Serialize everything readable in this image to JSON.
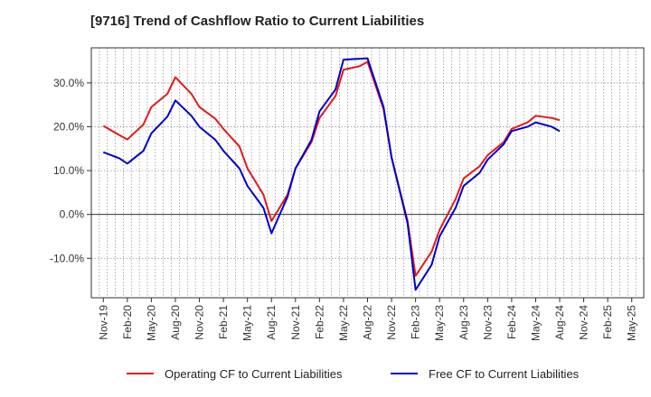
{
  "chart_data": {
    "type": "line",
    "title": "[9716]  Trend of Cashflow Ratio to Current Liabilities",
    "categories": [
      "Nov-19",
      "Feb-20",
      "May-20",
      "Aug-20",
      "Nov-20",
      "Feb-21",
      "May-21",
      "Aug-21",
      "Nov-21",
      "Feb-22",
      "May-22",
      "Aug-22",
      "Nov-22",
      "Feb-23",
      "May-23",
      "Aug-23",
      "Nov-23",
      "Feb-24",
      "May-24",
      "Aug-24",
      "Nov-24",
      "Feb-25",
      "May-25"
    ],
    "x": [
      "Nov-19",
      "Jan-20",
      "Feb-20",
      "Apr-20",
      "May-20",
      "Jul-20",
      "Aug-20",
      "Oct-20",
      "Nov-20",
      "Jan-21",
      "Feb-21",
      "Apr-21",
      "May-21",
      "Jul-21",
      "Aug-21",
      "Oct-21",
      "Nov-21",
      "Jan-22",
      "Feb-22",
      "Apr-22",
      "May-22",
      "Jul-22",
      "Aug-22",
      "Oct-22",
      "Nov-22",
      "Jan-23",
      "Feb-23",
      "Apr-23",
      "May-23",
      "Jul-23",
      "Aug-23",
      "Oct-23",
      "Nov-23",
      "Jan-24",
      "Feb-24",
      "Apr-24",
      "May-24",
      "Jul-24",
      "Aug-24"
    ],
    "series": [
      {
        "name": "Operating CF to Current Liabilities",
        "color": "#e31a1c",
        "values": [
          20.2,
          18.1,
          17.1,
          20.5,
          24.5,
          27.5,
          31.3,
          27.5,
          24.5,
          21.8,
          19.5,
          15.5,
          10.5,
          4.5,
          -1.5,
          4.5,
          10.5,
          16.5,
          22.0,
          27.0,
          33.0,
          33.8,
          34.8,
          24.0,
          13.0,
          -1.5,
          -14.0,
          -8.5,
          -3.5,
          3.5,
          8.2,
          11.0,
          13.5,
          16.5,
          19.5,
          21.0,
          22.5,
          22.0,
          21.5
        ]
      },
      {
        "name": "Free CF to Current Liabilities",
        "color": "#0000cd",
        "values": [
          14.2,
          12.8,
          11.6,
          14.5,
          18.5,
          22.3,
          26.0,
          22.5,
          20.0,
          17.0,
          14.5,
          10.5,
          6.5,
          1.5,
          -4.3,
          4.0,
          10.5,
          17.0,
          23.5,
          28.5,
          35.3,
          35.5,
          35.6,
          24.5,
          13.0,
          -2.0,
          -17.2,
          -11.5,
          -5.0,
          1.5,
          6.5,
          9.5,
          12.5,
          16.0,
          19.0,
          20.0,
          21.0,
          20.0,
          19.0
        ]
      }
    ],
    "yticks": [
      "30.0%",
      "20.0%",
      "10.0%",
      "0.0%",
      "-10.0%"
    ],
    "ylim": [
      -19,
      38
    ],
    "grid": true,
    "legend_position": "bottom"
  }
}
